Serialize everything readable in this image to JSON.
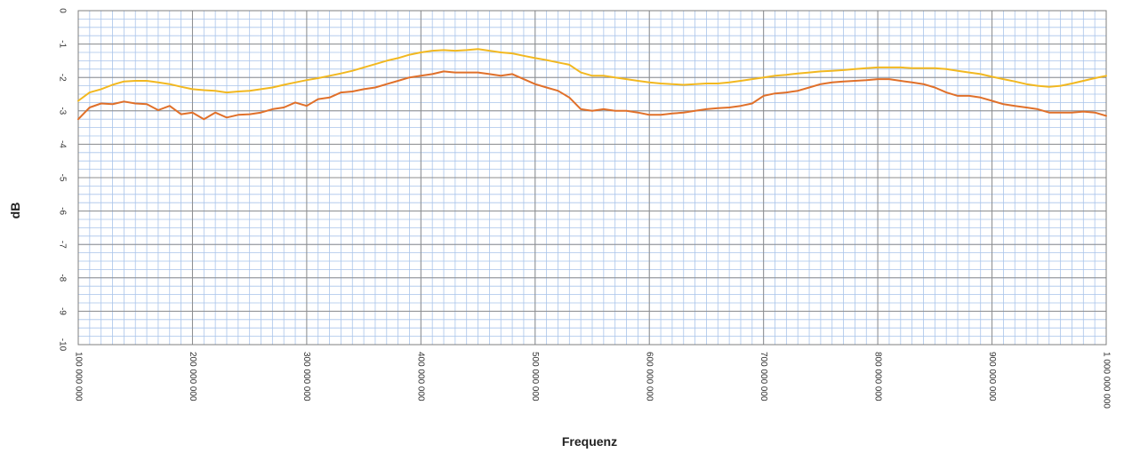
{
  "chart_data": {
    "type": "line",
    "title": "",
    "xlabel": "Frequenz",
    "ylabel": "dB",
    "xlim": [
      100000000,
      1000000000
    ],
    "ylim": [
      -10,
      0
    ],
    "x_ticks": [
      100000000,
      200000000,
      300000000,
      400000000,
      500000000,
      600000000,
      700000000,
      800000000,
      900000000,
      1000000000
    ],
    "x_tick_labels": [
      "100 000 000",
      "200 000 000",
      "300 000 000",
      "400 000 000",
      "500 000 000",
      "600 000 000",
      "700 000 000",
      "800 000 000",
      "900 000 000",
      "1 000 000 000"
    ],
    "y_ticks": [
      0,
      -1,
      -2,
      -3,
      -4,
      -5,
      -6,
      -7,
      -8,
      -9,
      -10
    ],
    "y_tick_labels": [
      "0",
      "-1",
      "-2",
      "-3",
      "-4",
      "-5",
      "-6",
      "-7",
      "-8",
      "-9",
      "-10"
    ],
    "grid": true,
    "legend": false,
    "series": [
      {
        "color": "#F2B820",
        "x": [
          100000000,
          110000000,
          120000000,
          130000000,
          140000000,
          150000000,
          160000000,
          170000000,
          180000000,
          190000000,
          200000000,
          210000000,
          220000000,
          230000000,
          240000000,
          250000000,
          260000000,
          270000000,
          280000000,
          290000000,
          300000000,
          310000000,
          320000000,
          330000000,
          340000000,
          350000000,
          360000000,
          370000000,
          380000000,
          390000000,
          400000000,
          410000000,
          420000000,
          430000000,
          440000000,
          450000000,
          460000000,
          470000000,
          480000000,
          490000000,
          500000000,
          510000000,
          520000000,
          530000000,
          540000000,
          550000000,
          560000000,
          570000000,
          580000000,
          590000000,
          600000000,
          610000000,
          620000000,
          630000000,
          640000000,
          650000000,
          660000000,
          670000000,
          680000000,
          690000000,
          700000000,
          710000000,
          720000000,
          730000000,
          740000000,
          750000000,
          760000000,
          770000000,
          780000000,
          790000000,
          800000000,
          810000000,
          820000000,
          830000000,
          840000000,
          850000000,
          860000000,
          870000000,
          880000000,
          890000000,
          900000000,
          910000000,
          920000000,
          930000000,
          940000000,
          950000000,
          960000000,
          970000000,
          980000000,
          990000000,
          1000000000
        ],
        "y": [
          -2.7,
          -2.45,
          -2.35,
          -2.22,
          -2.12,
          -2.1,
          -2.1,
          -2.15,
          -2.2,
          -2.28,
          -2.35,
          -2.38,
          -2.4,
          -2.45,
          -2.42,
          -2.4,
          -2.35,
          -2.3,
          -2.22,
          -2.15,
          -2.08,
          -2.02,
          -1.95,
          -1.88,
          -1.8,
          -1.7,
          -1.6,
          -1.5,
          -1.42,
          -1.32,
          -1.25,
          -1.2,
          -1.18,
          -1.2,
          -1.18,
          -1.15,
          -1.2,
          -1.25,
          -1.28,
          -1.35,
          -1.42,
          -1.48,
          -1.55,
          -1.62,
          -1.85,
          -1.95,
          -1.95,
          -2.0,
          -2.05,
          -2.1,
          -2.15,
          -2.18,
          -2.2,
          -2.22,
          -2.2,
          -2.18,
          -2.18,
          -2.15,
          -2.1,
          -2.05,
          -2.0,
          -1.95,
          -1.92,
          -1.88,
          -1.85,
          -1.82,
          -1.8,
          -1.78,
          -1.75,
          -1.72,
          -1.7,
          -1.7,
          -1.7,
          -1.72,
          -1.72,
          -1.72,
          -1.75,
          -1.8,
          -1.85,
          -1.9,
          -1.98,
          -2.05,
          -2.12,
          -2.2,
          -2.25,
          -2.28,
          -2.25,
          -2.18,
          -2.1,
          -2.02,
          -1.95
        ]
      },
      {
        "color": "#E0702A",
        "x": [
          100000000,
          110000000,
          120000000,
          130000000,
          140000000,
          150000000,
          160000000,
          170000000,
          180000000,
          190000000,
          200000000,
          210000000,
          220000000,
          230000000,
          240000000,
          250000000,
          260000000,
          270000000,
          280000000,
          290000000,
          300000000,
          310000000,
          320000000,
          330000000,
          340000000,
          350000000,
          360000000,
          370000000,
          380000000,
          390000000,
          400000000,
          410000000,
          420000000,
          430000000,
          440000000,
          450000000,
          460000000,
          470000000,
          480000000,
          490000000,
          500000000,
          510000000,
          520000000,
          530000000,
          540000000,
          550000000,
          560000000,
          570000000,
          580000000,
          590000000,
          600000000,
          610000000,
          620000000,
          630000000,
          640000000,
          650000000,
          660000000,
          670000000,
          680000000,
          690000000,
          700000000,
          710000000,
          720000000,
          730000000,
          740000000,
          750000000,
          760000000,
          770000000,
          780000000,
          790000000,
          800000000,
          810000000,
          820000000,
          830000000,
          840000000,
          850000000,
          860000000,
          870000000,
          880000000,
          890000000,
          900000000,
          910000000,
          920000000,
          930000000,
          940000000,
          950000000,
          960000000,
          970000000,
          980000000,
          990000000,
          1000000000
        ],
        "y": [
          -3.25,
          -2.9,
          -2.78,
          -2.8,
          -2.72,
          -2.78,
          -2.8,
          -2.98,
          -2.85,
          -3.1,
          -3.05,
          -3.25,
          -3.05,
          -3.2,
          -3.12,
          -3.1,
          -3.05,
          -2.95,
          -2.9,
          -2.75,
          -2.85,
          -2.65,
          -2.6,
          -2.45,
          -2.42,
          -2.35,
          -2.3,
          -2.2,
          -2.1,
          -2.0,
          -1.95,
          -1.9,
          -1.82,
          -1.85,
          -1.85,
          -1.85,
          -1.9,
          -1.95,
          -1.9,
          -2.05,
          -2.2,
          -2.3,
          -2.4,
          -2.6,
          -2.95,
          -3.0,
          -2.95,
          -3.0,
          -3.0,
          -3.05,
          -3.12,
          -3.12,
          -3.08,
          -3.05,
          -3.0,
          -2.95,
          -2.92,
          -2.9,
          -2.85,
          -2.78,
          -2.55,
          -2.48,
          -2.45,
          -2.4,
          -2.3,
          -2.2,
          -2.15,
          -2.12,
          -2.1,
          -2.08,
          -2.05,
          -2.05,
          -2.1,
          -2.15,
          -2.2,
          -2.3,
          -2.45,
          -2.55,
          -2.55,
          -2.6,
          -2.7,
          -2.8,
          -2.85,
          -2.9,
          -2.95,
          -3.05,
          -3.05,
          -3.05,
          -3.02,
          -3.05,
          -3.15
        ]
      }
    ]
  }
}
